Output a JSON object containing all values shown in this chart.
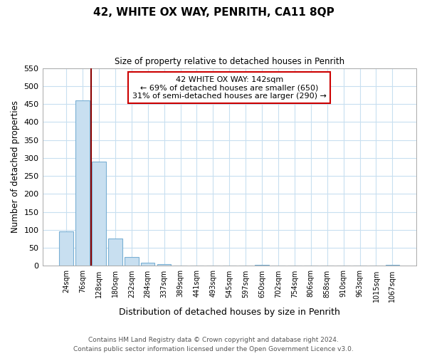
{
  "title": "42, WHITE OX WAY, PENRITH, CA11 8QP",
  "subtitle": "Size of property relative to detached houses in Penrith",
  "xlabel": "Distribution of detached houses by size in Penrith",
  "ylabel": "Number of detached properties",
  "bar_labels": [
    "24sqm",
    "76sqm",
    "128sqm",
    "180sqm",
    "232sqm",
    "284sqm",
    "337sqm",
    "389sqm",
    "441sqm",
    "493sqm",
    "545sqm",
    "597sqm",
    "650sqm",
    "702sqm",
    "754sqm",
    "806sqm",
    "858sqm",
    "910sqm",
    "963sqm",
    "1015sqm",
    "1067sqm"
  ],
  "bar_values": [
    95,
    460,
    290,
    76,
    24,
    8,
    5,
    0,
    0,
    0,
    0,
    0,
    3,
    0,
    0,
    0,
    0,
    0,
    0,
    0,
    3
  ],
  "bar_color": "#c8dff0",
  "bar_edge_color": "#7ab0d4",
  "ylim": [
    0,
    550
  ],
  "yticks": [
    0,
    50,
    100,
    150,
    200,
    250,
    300,
    350,
    400,
    450,
    500,
    550
  ],
  "property_line_color": "#8b0000",
  "annotation_title": "42 WHITE OX WAY: 142sqm",
  "annotation_line1": "← 69% of detached houses are smaller (650)",
  "annotation_line2": "31% of semi-detached houses are larger (290) →",
  "footer_line1": "Contains HM Land Registry data © Crown copyright and database right 2024.",
  "footer_line2": "Contains public sector information licensed under the Open Government Licence v3.0.",
  "background_color": "#ffffff",
  "grid_color": "#c8dff0"
}
